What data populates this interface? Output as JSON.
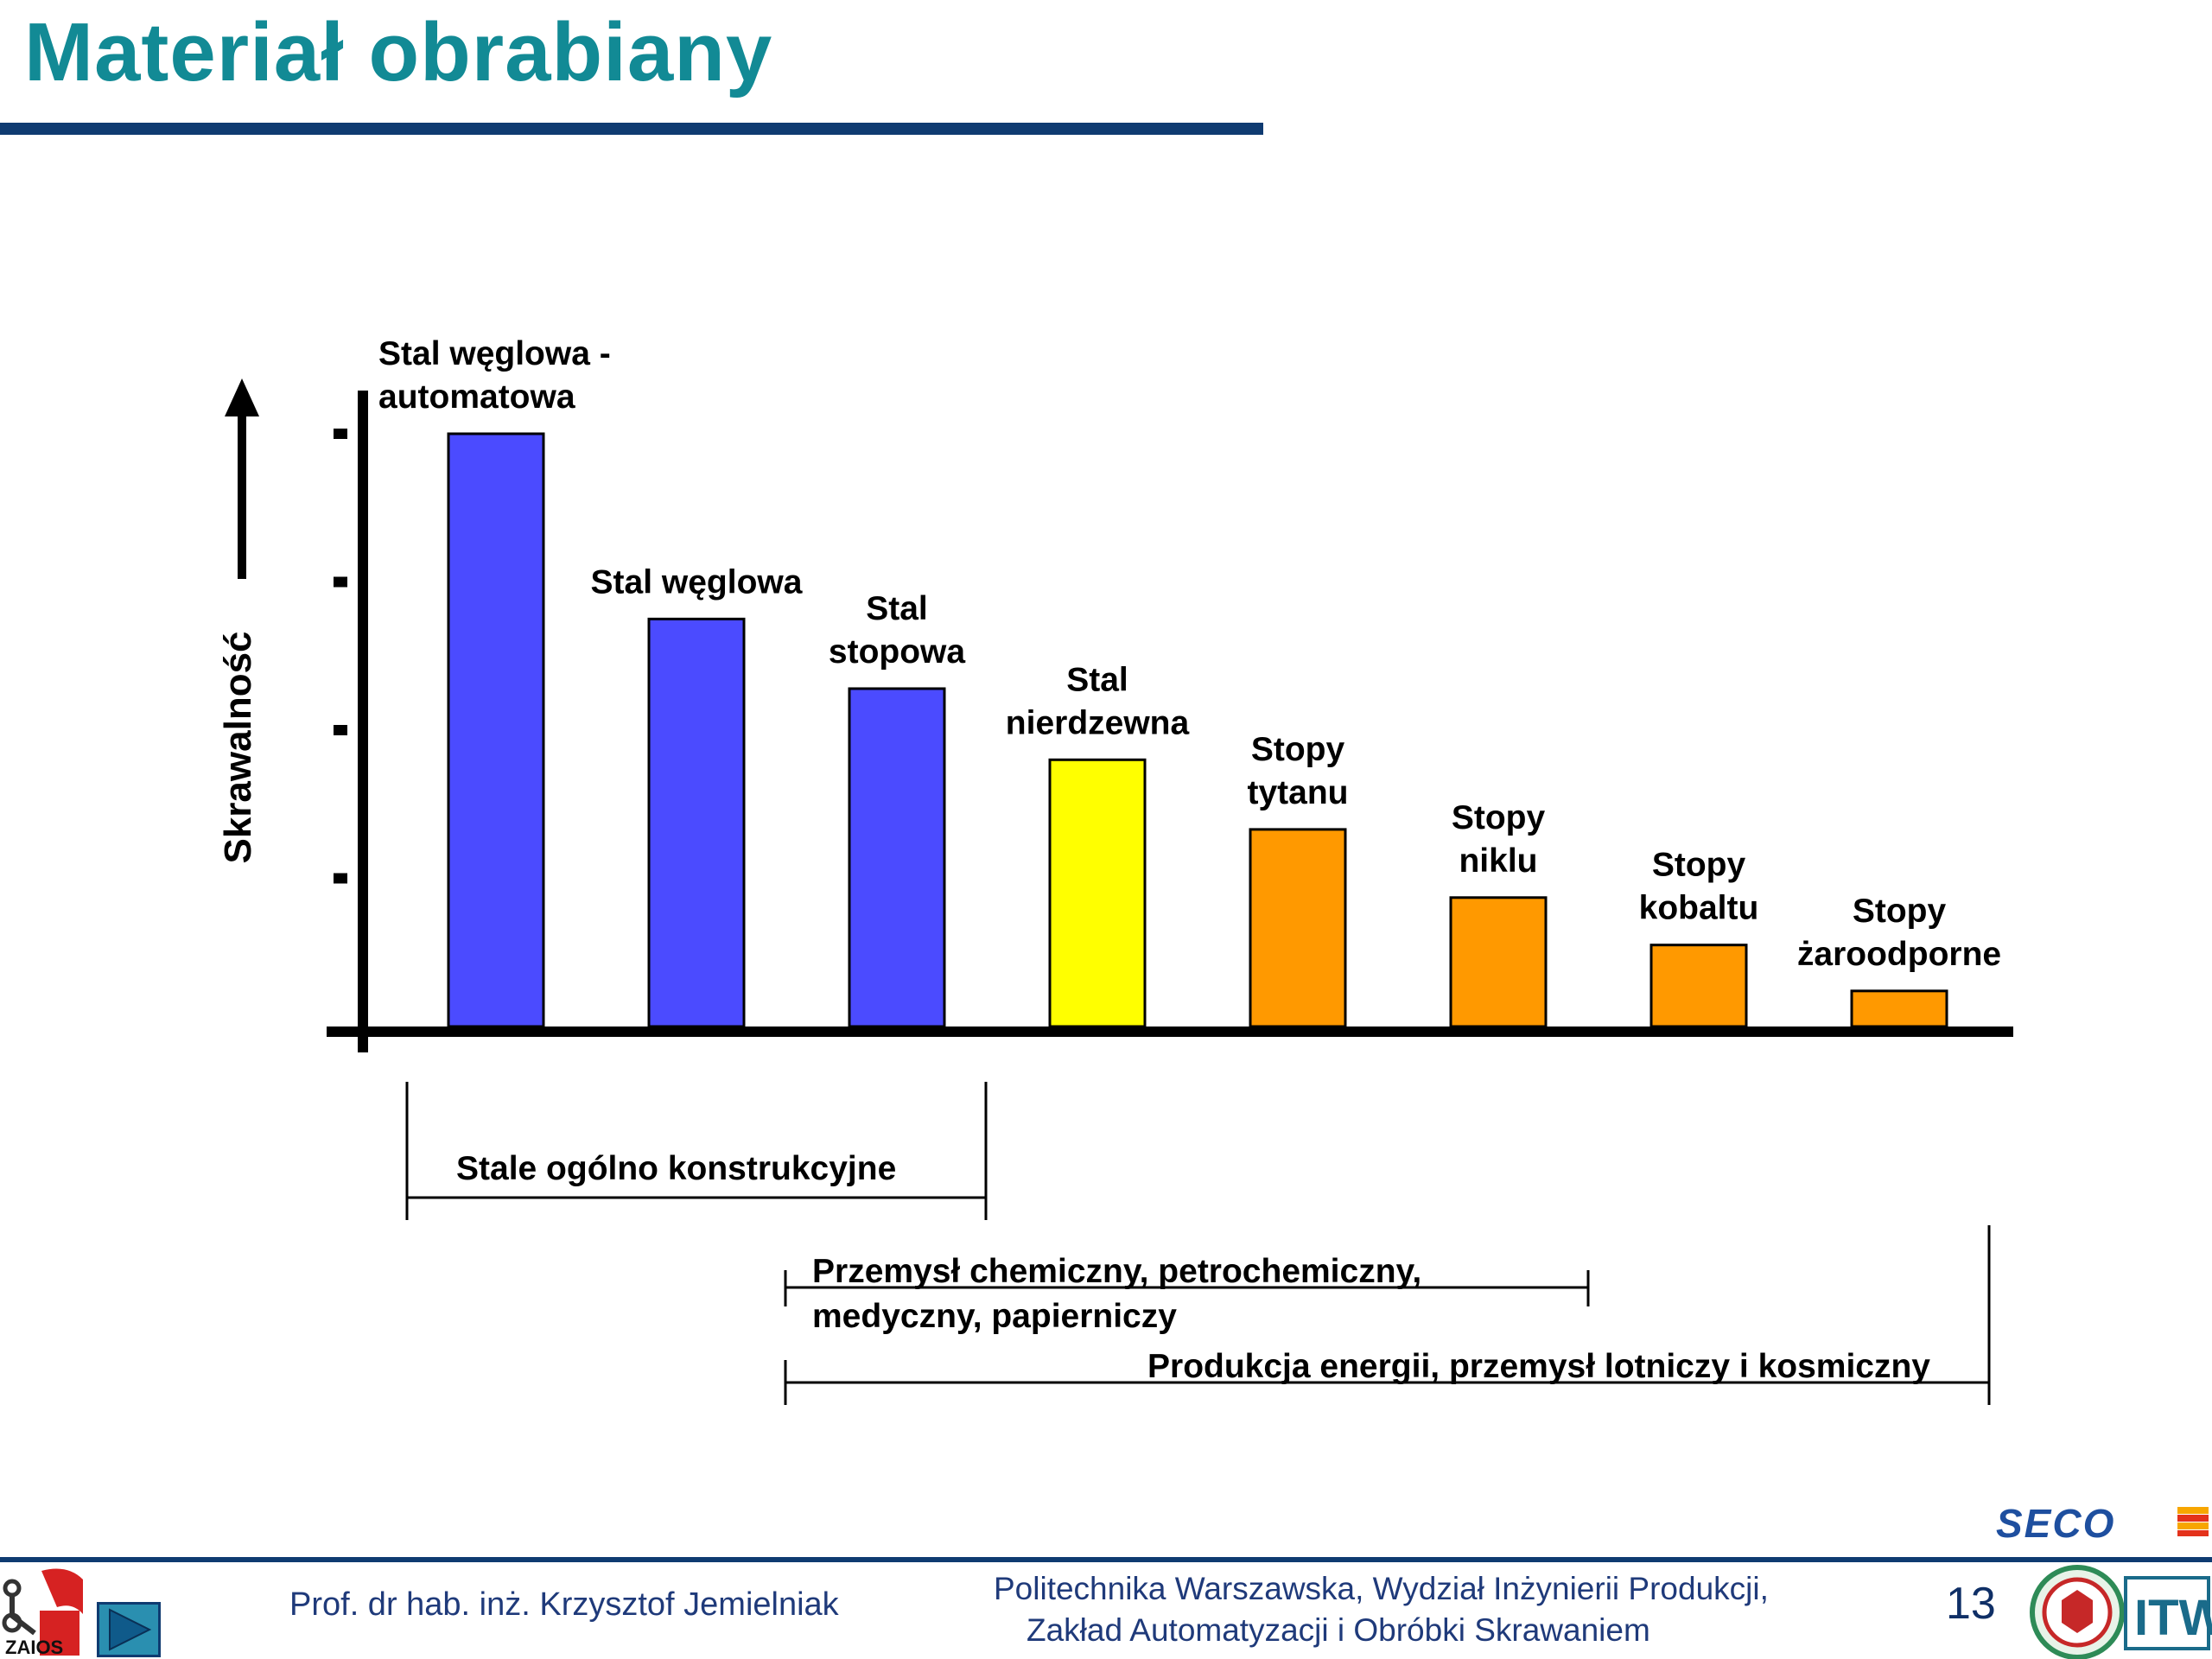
{
  "header": {
    "title": "Materiał obrabiany"
  },
  "chart_data": {
    "type": "bar",
    "ylabel": "Skrawalność",
    "categories": [
      [
        "Stal węglowa -",
        "automatowa"
      ],
      [
        "Stal węglowa"
      ],
      [
        "Stal",
        "stopowa"
      ],
      [
        "Stal",
        "nierdzewna"
      ],
      [
        "Stopy",
        "tytanu"
      ],
      [
        "Stopy",
        "niklu"
      ],
      [
        "Stopy",
        "kobaltu"
      ],
      [
        "Stopy",
        "żaroodporne"
      ]
    ],
    "values": [
      4.0,
      2.75,
      2.28,
      1.8,
      1.33,
      0.87,
      0.55,
      0.24
    ],
    "colors": [
      "#4b4bff",
      "#4b4bff",
      "#4b4bff",
      "#ffff00",
      "#ff9900",
      "#ff9900",
      "#ff9900",
      "#ff9900"
    ],
    "ylim": [
      0,
      4.2
    ],
    "y_tick_values": [
      1,
      2,
      3,
      4
    ],
    "tick_labels_shown": false,
    "grid": false,
    "annotations": [
      {
        "text": [
          "Stale ogólno konstrukcyjne"
        ],
        "from_category": 0,
        "to_category": 2
      },
      {
        "text": [
          "Przemysł chemiczny, petrochemiczny,",
          "medyczny, papierniczy"
        ],
        "from_category": 2,
        "to_category": 6
      },
      {
        "text": [
          "Produkcja energii, przemysł lotniczy i kosmiczny"
        ],
        "from_category": 2,
        "to_category": 7
      }
    ]
  },
  "footer": {
    "author": "Prof. dr hab. inż. Krzysztof Jemielniak",
    "institution_line1": "Politechnika Warszawska, Wydział Inżynierii Produkcji,",
    "institution_line2": "Zakład Automatyzacji i Obróbki Skrawaniem",
    "page_number": "13",
    "left_logo_text": "ZAIOS",
    "sponsor_logo_text": "SECO",
    "right_logo_text": "ITW"
  },
  "icons": {
    "nav_button": "play-forward-icon"
  }
}
